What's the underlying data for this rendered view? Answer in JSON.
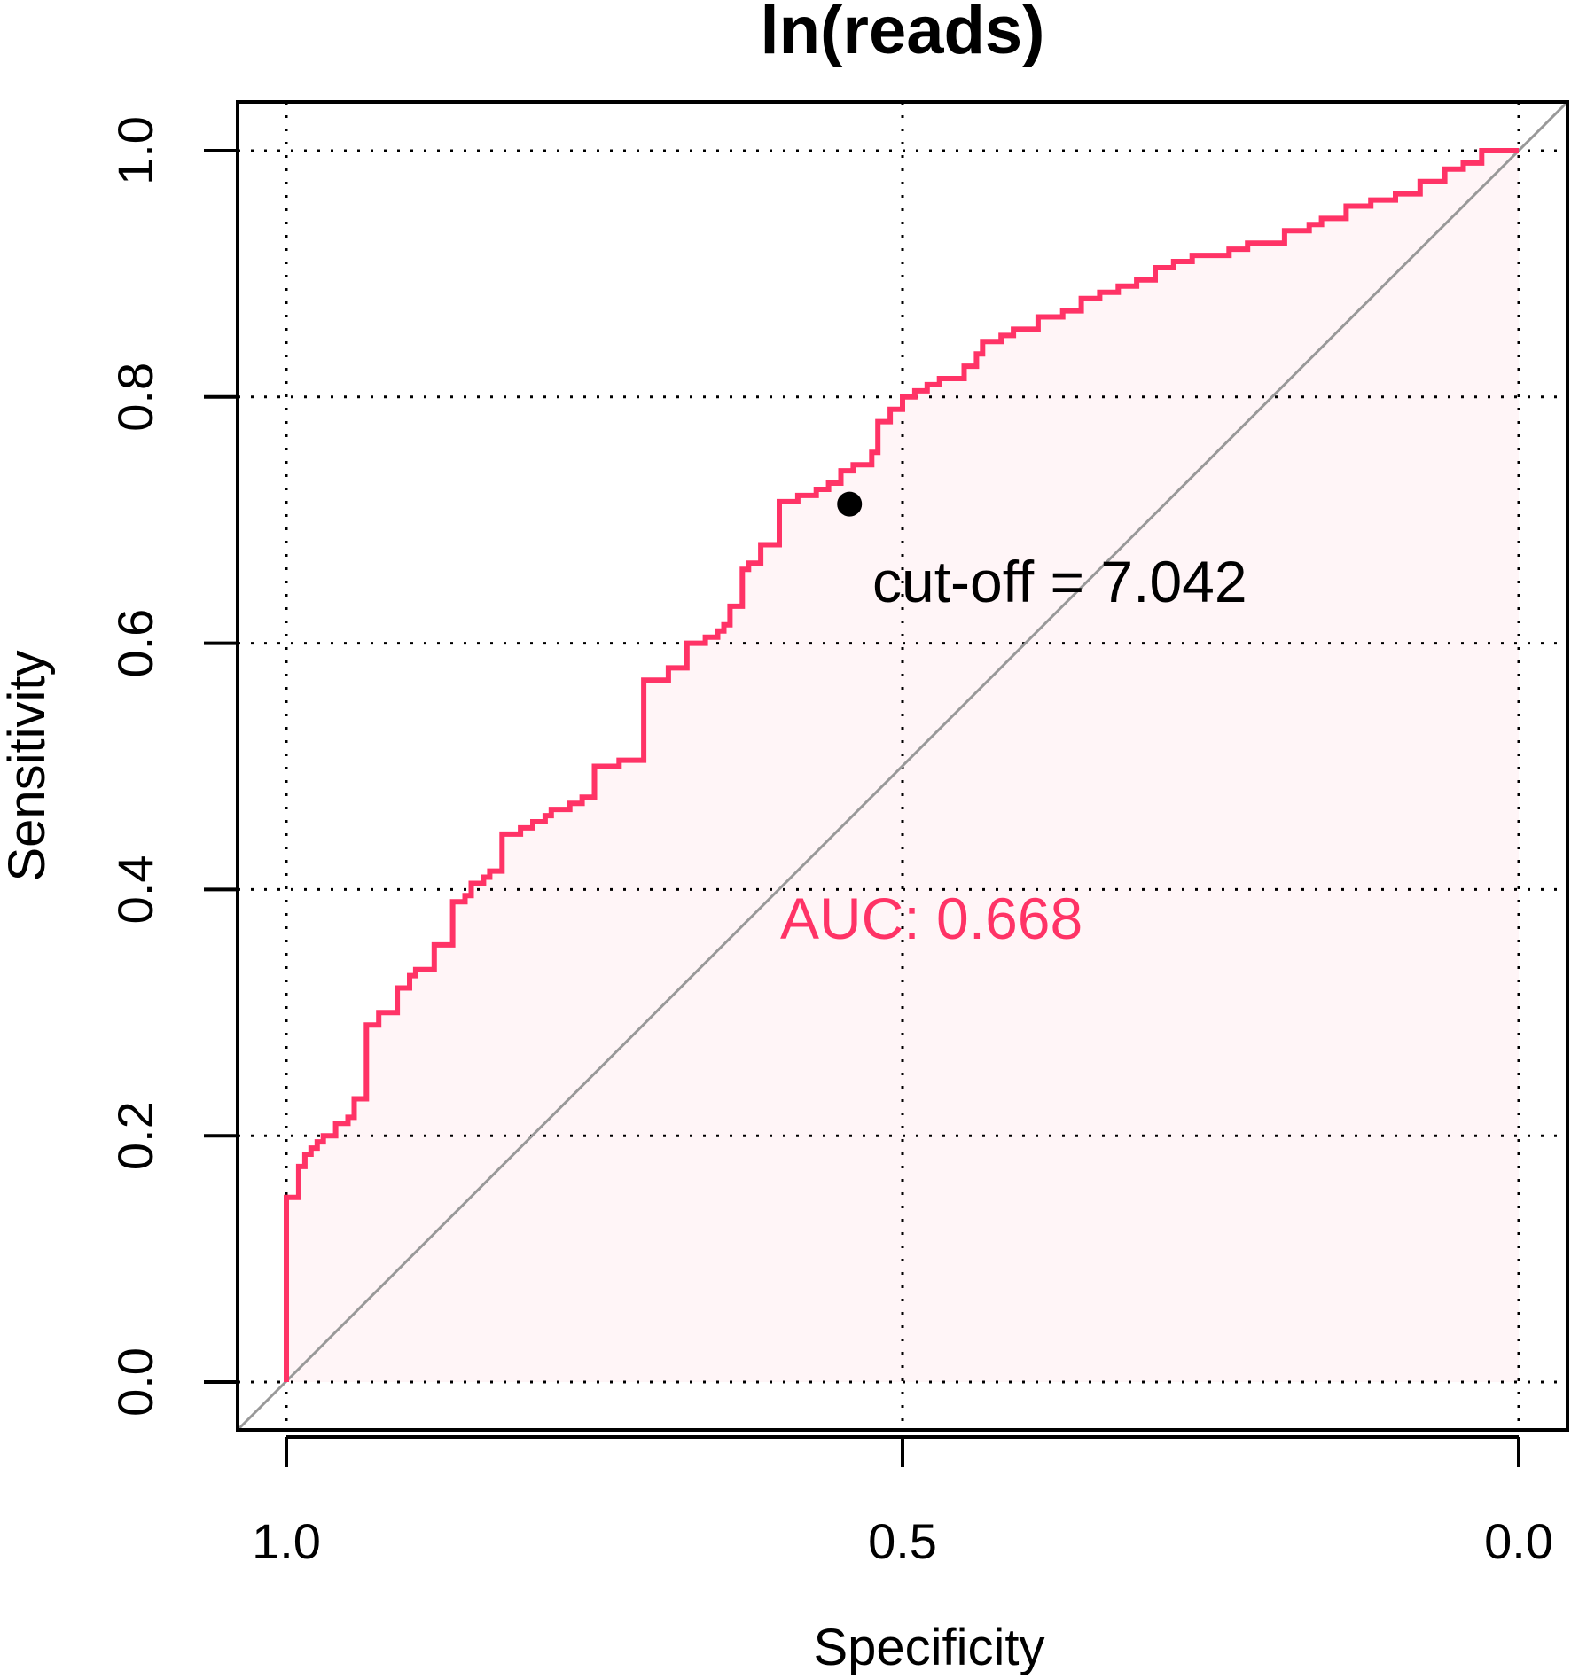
{
  "chart_data": {
    "type": "line",
    "title": "ln(reads)",
    "xlabel": "Specificity",
    "ylabel": "Sensitivity",
    "xlim": [
      1.0,
      0.0
    ],
    "ylim": [
      0.0,
      1.0
    ],
    "x_reversed": true,
    "x_ticks": [
      "1.0",
      "0.5",
      "0.0"
    ],
    "x_tick_values": [
      1.0,
      0.5,
      0.0
    ],
    "y_ticks": [
      "0.0",
      "0.2",
      "0.4",
      "0.6",
      "0.8",
      "1.0"
    ],
    "y_tick_values": [
      0.0,
      0.2,
      0.4,
      0.6,
      0.8,
      1.0
    ],
    "grid": true,
    "diagonal_reference": true,
    "series": [
      {
        "color": "#ff3366",
        "x": [
          1.0,
          1.0,
          0.99,
          0.99,
          0.985,
          0.98,
          0.975,
          0.97,
          0.96,
          0.95,
          0.945,
          0.935,
          0.925,
          0.925,
          0.91,
          0.9,
          0.895,
          0.89,
          0.88,
          0.865,
          0.855,
          0.85,
          0.84,
          0.835,
          0.825,
          0.81,
          0.8,
          0.79,
          0.785,
          0.77,
          0.76,
          0.75,
          0.73,
          0.71,
          0.69,
          0.675,
          0.66,
          0.65,
          0.645,
          0.64,
          0.63,
          0.63,
          0.625,
          0.615,
          0.6,
          0.585,
          0.57,
          0.56,
          0.55,
          0.54,
          0.525,
          0.525,
          0.52,
          0.51,
          0.5,
          0.49,
          0.48,
          0.47,
          0.45,
          0.44,
          0.435,
          0.42,
          0.41,
          0.39,
          0.37,
          0.355,
          0.34,
          0.325,
          0.31,
          0.295,
          0.28,
          0.265,
          0.25,
          0.235,
          0.22,
          0.19,
          0.17,
          0.16,
          0.14,
          0.12,
          0.1,
          0.08,
          0.06,
          0.045,
          0.03,
          0.015,
          0.0
        ],
        "y": [
          0.0,
          0.15,
          0.165,
          0.175,
          0.185,
          0.19,
          0.195,
          0.2,
          0.21,
          0.215,
          0.23,
          0.29,
          0.295,
          0.3,
          0.32,
          0.33,
          0.335,
          0.335,
          0.355,
          0.39,
          0.395,
          0.405,
          0.41,
          0.415,
          0.445,
          0.45,
          0.455,
          0.46,
          0.465,
          0.47,
          0.475,
          0.5,
          0.505,
          0.57,
          0.58,
          0.6,
          0.605,
          0.61,
          0.615,
          0.63,
          0.64,
          0.66,
          0.665,
          0.68,
          0.715,
          0.72,
          0.725,
          0.73,
          0.74,
          0.745,
          0.75,
          0.755,
          0.78,
          0.79,
          0.8,
          0.805,
          0.81,
          0.815,
          0.825,
          0.835,
          0.845,
          0.85,
          0.855,
          0.865,
          0.87,
          0.88,
          0.885,
          0.89,
          0.895,
          0.905,
          0.91,
          0.915,
          0.915,
          0.92,
          0.925,
          0.935,
          0.94,
          0.945,
          0.955,
          0.96,
          0.965,
          0.975,
          0.985,
          0.99,
          1.0,
          1.0,
          1.0
        ]
      }
    ],
    "cutoff_point": {
      "x": 0.543,
      "y": 0.713
    },
    "annotations": [
      {
        "text": "cut-off = 7.042"
      },
      {
        "text": "AUC: 0.668",
        "color": "#ff3366"
      }
    ]
  }
}
